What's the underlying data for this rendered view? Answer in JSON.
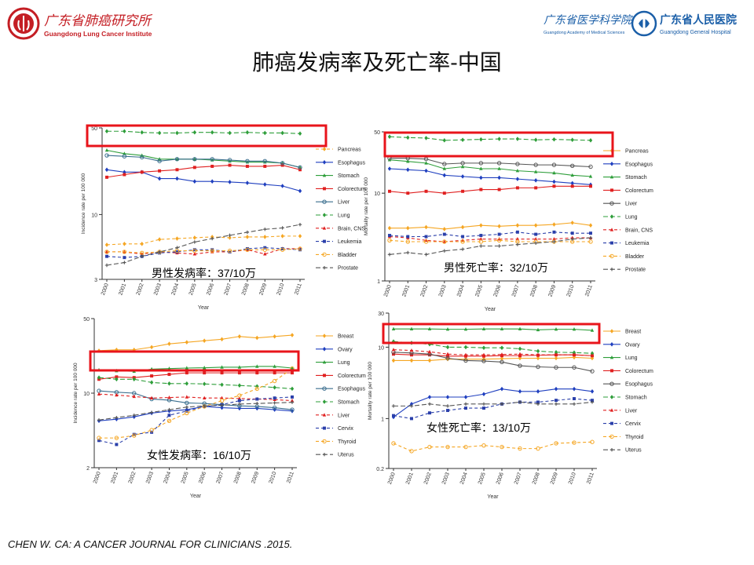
{
  "header": {
    "left_logo": {
      "name_cn": "广东省肺癌研究所",
      "name_en": "Guangdong Lung Cancer Institute"
    },
    "right_logo_1": {
      "name_cn": "广东省医学科学院",
      "name_en": "Guangdong Academy of Medical Sciences"
    },
    "right_logo_2": {
      "name_cn": "广东省人民医院",
      "name_en": "Guangdong General Hospital"
    }
  },
  "slide_title": "肺癌发病率及死亡率-中国",
  "citation": "CHEN W. CA: A CANCER JOURNAL FOR CLINICIANS .2015.",
  "colors": {
    "highlight": "#e8141b",
    "pancreas_thyroid": "#f5a623",
    "esophagus_ovary": "#1f3fbf",
    "stomach_lung": "#2e9e3a",
    "colorectum": "#e02020"
  },
  "chart_data": [
    {
      "type": "line",
      "ylabel": "Incidence rate per 100 000",
      "xlabel": "Year",
      "yscale": "log",
      "ylim": [
        3,
        50
      ],
      "yticks": [
        "3",
        "10",
        "50"
      ],
      "categories": [
        "2000",
        "2001",
        "2002",
        "2003",
        "2004",
        "2005",
        "2006",
        "2007",
        "2008",
        "2009",
        "2010",
        "2011"
      ],
      "annotation": "男性发病率：37/10万",
      "series": [
        {
          "name": "Pancreas",
          "color": "#f5a623",
          "dash": "4,3",
          "marker": "diamond",
          "values": [
            5.7,
            5.8,
            5.8,
            6.3,
            6.4,
            6.5,
            6.6,
            6.5,
            6.6,
            6.6,
            6.7,
            6.7
          ]
        },
        {
          "name": "Esophagus",
          "color": "#1f3fbf",
          "dash": "",
          "marker": "diamond",
          "values": [
            23,
            22,
            22,
            19.5,
            19.5,
            18.5,
            18.5,
            18.3,
            18,
            17.5,
            17,
            15.5
          ]
        },
        {
          "name": "Stomach",
          "color": "#2e9e3a",
          "dash": "",
          "marker": "triangle",
          "values": [
            33,
            31,
            30,
            28,
            28,
            28,
            27.5,
            27,
            26.5,
            26.5,
            26,
            24
          ]
        },
        {
          "name": "Colorectum",
          "color": "#e02020",
          "dash": "",
          "marker": "square",
          "values": [
            20,
            21,
            22,
            22.5,
            23,
            24,
            24.5,
            25,
            24.5,
            24.5,
            25,
            23
          ]
        },
        {
          "name": "Liver",
          "color": "#3a6e8e",
          "dash": "",
          "marker": "circle",
          "values": [
            30,
            29.5,
            29,
            27,
            28,
            28,
            28,
            27.5,
            27,
            27,
            26,
            24
          ]
        },
        {
          "name": "Lung",
          "color": "#2e9e3a",
          "dash": "6,3",
          "marker": "diamond",
          "values": [
            47,
            47,
            46,
            45.5,
            45.5,
            46,
            46,
            45.5,
            46,
            45.5,
            45.5,
            45
          ]
        },
        {
          "name": "Brain, CNS",
          "color": "#e02020",
          "dash": "4,3",
          "marker": "triangle",
          "values": [
            5.0,
            5.0,
            4.8,
            5.0,
            4.9,
            4.8,
            5.0,
            5.0,
            5.2,
            4.8,
            5.3,
            5.3
          ]
        },
        {
          "name": "Leukemia",
          "color": "#2a3faa",
          "dash": "4,3",
          "marker": "square",
          "values": [
            4.6,
            4.5,
            4.6,
            4.9,
            5.0,
            5.2,
            5.2,
            5.0,
            5.3,
            5.4,
            5.3,
            5.2
          ]
        },
        {
          "name": "Bladder",
          "color": "#f5a623",
          "dash": "4,3",
          "marker": "circle",
          "values": [
            5.0,
            5.0,
            4.9,
            5.0,
            5.1,
            5.1,
            5.1,
            5.1,
            5.2,
            5.2,
            5.2,
            5.3
          ]
        },
        {
          "name": "Prostate",
          "color": "#555555",
          "dash": "6,3",
          "marker": "plus",
          "values": [
            3.9,
            4.1,
            4.6,
            5.0,
            5.4,
            6.0,
            6.4,
            6.8,
            7.2,
            7.6,
            7.8,
            8.3
          ]
        }
      ]
    },
    {
      "type": "line",
      "ylabel": "Mortality rate per 100 000",
      "xlabel": "Year",
      "yscale": "log",
      "ylim": [
        1,
        50
      ],
      "yticks": [
        "1",
        "10",
        "50"
      ],
      "categories": [
        "2000",
        "2001",
        "2002",
        "2003",
        "2004",
        "2005",
        "2006",
        "2007",
        "2008",
        "2009",
        "2010",
        "2011"
      ],
      "annotation": "男性死亡率：32/10万",
      "series": [
        {
          "name": "Pancreas",
          "color": "#f5a623",
          "dash": "",
          "marker": "diamond",
          "values": [
            4.0,
            4.0,
            4.1,
            3.9,
            4.1,
            4.3,
            4.2,
            4.3,
            4.3,
            4.4,
            4.6,
            4.3
          ]
        },
        {
          "name": "Esophagus",
          "color": "#1f3fbf",
          "dash": "",
          "marker": "diamond",
          "values": [
            19,
            18.5,
            18,
            16,
            15.5,
            15,
            15,
            14.5,
            14,
            13.5,
            13,
            12.5
          ]
        },
        {
          "name": "Stomach",
          "color": "#2e9e3a",
          "dash": "",
          "marker": "triangle",
          "values": [
            24,
            23,
            22,
            19,
            20,
            19,
            19,
            18,
            17.5,
            17,
            16,
            15.5
          ]
        },
        {
          "name": "Colorectum",
          "color": "#e02020",
          "dash": "",
          "marker": "square",
          "values": [
            10.5,
            10,
            10.5,
            10,
            10.5,
            11,
            11,
            11.5,
            11.5,
            12,
            12,
            12
          ]
        },
        {
          "name": "Liver",
          "color": "#555555",
          "dash": "",
          "marker": "circle",
          "values": [
            25,
            25,
            24.5,
            21.5,
            22,
            22,
            22,
            21.5,
            21,
            21,
            20.5,
            20
          ]
        },
        {
          "name": "Lung",
          "color": "#2e9e3a",
          "dash": "6,3",
          "marker": "diamond",
          "values": [
            44,
            43,
            42.5,
            40,
            40.5,
            41,
            41.5,
            41.5,
            40.5,
            41,
            40.5,
            40
          ]
        },
        {
          "name": "Brain, CNS",
          "color": "#e02020",
          "dash": "4,3",
          "marker": "triangle",
          "values": [
            3.2,
            3.1,
            2.9,
            2.8,
            2.9,
            3.0,
            3.0,
            3.0,
            3.0,
            3.0,
            3.1,
            3.1
          ]
        },
        {
          "name": "Leukemia",
          "color": "#2a3faa",
          "dash": "4,3",
          "marker": "square",
          "values": [
            3.3,
            3.2,
            3.2,
            3.4,
            3.2,
            3.3,
            3.4,
            3.6,
            3.4,
            3.6,
            3.5,
            3.5
          ]
        },
        {
          "name": "Bladder",
          "color": "#f5a623",
          "dash": "4,3",
          "marker": "circle",
          "values": [
            2.9,
            2.8,
            2.8,
            2.8,
            2.8,
            2.8,
            2.9,
            2.8,
            2.8,
            2.8,
            2.8,
            2.8
          ]
        },
        {
          "name": "Prostate",
          "color": "#555555",
          "dash": "6,3",
          "marker": "plus",
          "values": [
            2.0,
            2.1,
            2.0,
            2.2,
            2.3,
            2.5,
            2.5,
            2.6,
            2.7,
            2.8,
            3.0,
            3.1
          ]
        }
      ]
    },
    {
      "type": "line",
      "ylabel": "Incidence rate per 100 000",
      "xlabel": "Year",
      "yscale": "log",
      "ylim": [
        2,
        50
      ],
      "yticks": [
        "2",
        "10",
        "50"
      ],
      "categories": [
        "2000",
        "2001",
        "2002",
        "2003",
        "2004",
        "2005",
        "2006",
        "2007",
        "2008",
        "2009",
        "2010",
        "2011"
      ],
      "annotation": "女性发病率：16/10万",
      "series": [
        {
          "name": "Breast",
          "color": "#f5a623",
          "dash": "",
          "marker": "diamond",
          "values": [
            25,
            25.5,
            25.5,
            27,
            29,
            30,
            31,
            32,
            34,
            33,
            34,
            35
          ]
        },
        {
          "name": "Ovary",
          "color": "#1f3fbf",
          "dash": "",
          "marker": "diamond",
          "values": [
            5.5,
            5.7,
            6.0,
            6.5,
            6.8,
            7.0,
            7.5,
            7.3,
            7.2,
            7.2,
            7.0,
            6.8
          ]
        },
        {
          "name": "Lung",
          "color": "#2e9e3a",
          "dash": "",
          "marker": "triangle",
          "values": [
            16.5,
            16.2,
            16,
            16.8,
            17,
            17.2,
            17.3,
            17.5,
            17.5,
            17.8,
            17.8,
            17.2
          ]
        },
        {
          "name": "Colorectum",
          "color": "#e02020",
          "dash": "",
          "marker": "square",
          "values": [
            13.5,
            14.2,
            14,
            14.5,
            15,
            15.5,
            15.5,
            15.5,
            15.5,
            15.5,
            15.5,
            15.5
          ]
        },
        {
          "name": "Esophagus",
          "color": "#3a6e8e",
          "dash": "",
          "marker": "circle",
          "values": [
            10.5,
            10.2,
            10,
            8.8,
            8.6,
            8.1,
            8.0,
            7.8,
            7.6,
            7.5,
            7.3,
            7.0
          ]
        },
        {
          "name": "Stomach",
          "color": "#2e9e3a",
          "dash": "6,3",
          "marker": "diamond",
          "values": [
            14,
            13.5,
            13.5,
            12.6,
            12.3,
            12.3,
            12.2,
            12,
            11.8,
            11.6,
            11.3,
            11
          ]
        },
        {
          "name": "Liver",
          "color": "#e02020",
          "dash": "4,3",
          "marker": "triangle",
          "values": [
            9.8,
            9.6,
            9.3,
            9.0,
            9.1,
            9.2,
            9.0,
            9.0,
            8.9,
            8.8,
            8.7,
            8.5
          ]
        },
        {
          "name": "Cervix",
          "color": "#2a3faa",
          "dash": "4,3",
          "marker": "square",
          "values": [
            3.6,
            3.3,
            4.1,
            4.3,
            6.2,
            6.8,
            7.5,
            7.8,
            8.5,
            8.8,
            9.0,
            9.2
          ]
        },
        {
          "name": "Thyroid",
          "color": "#f5a623",
          "dash": "4,3",
          "marker": "circle",
          "values": [
            3.8,
            3.8,
            4.0,
            4.5,
            5.5,
            6.5,
            7.5,
            8.5,
            9.5,
            11,
            13,
            17
          ]
        },
        {
          "name": "Uterus",
          "color": "#555555",
          "dash": "6,3",
          "marker": "plus",
          "values": [
            5.6,
            5.9,
            6.2,
            6.6,
            7.0,
            7.4,
            7.6,
            7.7,
            7.9,
            8.0,
            8.1,
            8.2
          ]
        }
      ]
    },
    {
      "type": "line",
      "ylabel": "Mortality rate per 100 000",
      "xlabel": "Year",
      "yscale": "log",
      "ylim": [
        0.2,
        30
      ],
      "yticks": [
        "0.2",
        "1",
        "10",
        "30"
      ],
      "categories": [
        "2000",
        "2001",
        "2002",
        "2003",
        "2004",
        "2005",
        "2006",
        "2007",
        "2008",
        "2009",
        "2010",
        "2011"
      ],
      "annotation": "女性死亡率：13/10万",
      "series": [
        {
          "name": "Breast",
          "color": "#f5a623",
          "dash": "",
          "marker": "diamond",
          "values": [
            6.5,
            6.5,
            6.5,
            6.8,
            6.8,
            6.8,
            6.9,
            7.0,
            7.0,
            7.0,
            7.2,
            7.0
          ]
        },
        {
          "name": "Ovary",
          "color": "#1f3fbf",
          "dash": "",
          "marker": "diamond",
          "values": [
            1.05,
            1.6,
            2.0,
            2.0,
            2.0,
            2.2,
            2.6,
            2.4,
            2.4,
            2.6,
            2.6,
            2.4
          ]
        },
        {
          "name": "Lung",
          "color": "#2e9e3a",
          "dash": "",
          "marker": "triangle",
          "values": [
            18,
            18,
            18,
            17.8,
            17.8,
            18,
            18,
            18,
            17.5,
            17.8,
            17.8,
            17.2
          ]
        },
        {
          "name": "Colorectum",
          "color": "#e02020",
          "dash": "",
          "marker": "square",
          "values": [
            8.0,
            7.8,
            7.8,
            7.5,
            7.5,
            7.5,
            7.6,
            7.6,
            7.7,
            7.8,
            7.8,
            7.6
          ]
        },
        {
          "name": "Esophagus",
          "color": "#555555",
          "dash": "",
          "marker": "circle",
          "values": [
            8.5,
            8.3,
            8.0,
            7.0,
            6.5,
            6.4,
            6.2,
            5.5,
            5.3,
            5.2,
            5.2,
            4.6
          ]
        },
        {
          "name": "Stomach",
          "color": "#2e9e3a",
          "dash": "6,3",
          "marker": "diamond",
          "values": [
            12,
            11.5,
            11,
            10,
            10,
            9.8,
            9.8,
            9.5,
            8.8,
            8.5,
            8.4,
            8.2
          ]
        },
        {
          "name": "Liver",
          "color": "#e02020",
          "dash": "4,3",
          "marker": "triangle",
          "values": [
            9.2,
            9.0,
            8.6,
            8.0,
            7.8,
            7.8,
            7.9,
            8.0,
            7.8,
            7.8,
            7.8,
            7.6
          ]
        },
        {
          "name": "Cervix",
          "color": "#2a3faa",
          "dash": "4,3",
          "marker": "square",
          "values": [
            1.1,
            1.0,
            1.2,
            1.3,
            1.4,
            1.4,
            1.6,
            1.7,
            1.7,
            1.8,
            1.9,
            1.8
          ]
        },
        {
          "name": "Thyroid",
          "color": "#f5a623",
          "dash": "4,3",
          "marker": "circle",
          "values": [
            0.45,
            0.35,
            0.4,
            0.4,
            0.4,
            0.42,
            0.4,
            0.38,
            0.38,
            0.45,
            0.46,
            0.47
          ]
        },
        {
          "name": "Uterus",
          "color": "#555555",
          "dash": "6,3",
          "marker": "plus",
          "values": [
            1.5,
            1.5,
            1.6,
            1.5,
            1.6,
            1.6,
            1.6,
            1.7,
            1.6,
            1.6,
            1.6,
            1.7
          ]
        }
      ]
    }
  ]
}
